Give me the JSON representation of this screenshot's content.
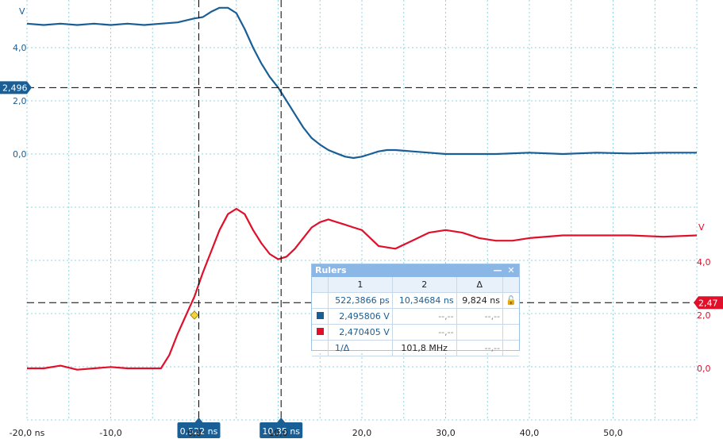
{
  "chart_data": {
    "type": "line",
    "x_unit": "ns",
    "x_ticks": [
      "-20,0 ns",
      "-10,0",
      "0,0",
      "10,0",
      "20,0",
      "30,0",
      "40,0",
      "50,0"
    ],
    "x_tick_values": [
      -20,
      -10,
      0,
      10,
      20,
      30,
      40,
      50
    ],
    "xlim": [
      -20,
      60
    ],
    "series": [
      {
        "color": "#1a5e96",
        "axis_unit": "V",
        "ticks": [
          "4,0",
          "2,0",
          "0,0"
        ],
        "tick_values": [
          4,
          2,
          0
        ],
        "ylim": [
          -2,
          6
        ],
        "x": [
          -20,
          -18,
          -16,
          -14,
          -12,
          -10,
          -8,
          -6,
          -4,
          -2,
          0,
          1,
          2,
          3,
          4,
          5,
          6,
          7,
          8,
          9,
          10,
          11,
          12,
          13,
          14,
          15,
          16,
          17,
          18,
          19,
          20,
          21,
          22,
          23,
          24,
          26,
          28,
          30,
          32,
          34,
          36,
          40,
          44,
          48,
          52,
          56,
          60
        ],
        "y": [
          4.9,
          4.85,
          4.9,
          4.85,
          4.9,
          4.85,
          4.9,
          4.85,
          4.9,
          4.95,
          5.1,
          5.15,
          5.35,
          5.5,
          5.5,
          5.3,
          4.7,
          4.0,
          3.4,
          2.9,
          2.5,
          2.0,
          1.5,
          1.0,
          0.6,
          0.35,
          0.15,
          0.02,
          -0.1,
          -0.15,
          -0.1,
          0.0,
          0.1,
          0.15,
          0.15,
          0.1,
          0.05,
          0.0,
          0.0,
          0.0,
          0.0,
          0.05,
          0.0,
          0.05,
          0.02,
          0.05,
          0.05
        ]
      },
      {
        "color": "#e0102a",
        "axis_unit": "V",
        "ticks": [
          "4,0",
          "2,0",
          "0,0"
        ],
        "tick_values": [
          4,
          2,
          0
        ],
        "ylim": [
          -2,
          6
        ],
        "x": [
          -20,
          -18,
          -16,
          -14,
          -12,
          -10,
          -8,
          -6,
          -4,
          -3,
          -2,
          -1,
          0,
          1,
          2,
          3,
          4,
          5,
          6,
          7,
          8,
          9,
          10,
          11,
          12,
          13,
          14,
          15,
          16,
          17,
          18,
          19,
          20,
          22,
          24,
          26,
          28,
          30,
          32,
          34,
          36,
          38,
          40,
          44,
          48,
          52,
          56,
          60
        ],
        "y": [
          0.0,
          0.0,
          0.1,
          -0.05,
          0.0,
          0.05,
          0.0,
          0.0,
          0.0,
          0.5,
          1.3,
          2.0,
          2.7,
          3.6,
          4.4,
          5.2,
          5.8,
          6.0,
          5.8,
          5.2,
          4.7,
          4.3,
          4.1,
          4.2,
          4.5,
          4.9,
          5.3,
          5.5,
          5.6,
          5.5,
          5.4,
          5.3,
          5.2,
          4.6,
          4.5,
          4.8,
          5.1,
          5.2,
          5.1,
          4.9,
          4.8,
          4.8,
          4.9,
          5.0,
          5.0,
          5.0,
          4.95,
          5.0
        ]
      }
    ],
    "cursors": [
      {
        "label": "0,522 ns",
        "x": 0.522
      },
      {
        "label": "10,35 ns",
        "x": 10.35
      }
    ],
    "level_markers": [
      {
        "label": "2,496",
        "series": 0,
        "value": 2.496
      },
      {
        "label": "2,47",
        "series": 1,
        "value": 2.47
      }
    ],
    "trigger_marker": {
      "x": 0.0,
      "y": 2.0
    }
  },
  "rulers": {
    "title": "Rulers",
    "minimize_glyph": "—",
    "close_glyph": "✕",
    "lock_glyph": "🔓",
    "col1": "1",
    "col2": "2",
    "col_delta": "Δ",
    "row_time": {
      "c1": "522,3866 ps",
      "c2": "10,34684 ns",
      "delta": "9,824 ns"
    },
    "row_blue": {
      "c1": "2,495806 V",
      "c2": "--,--",
      "delta": "--,--"
    },
    "row_red": {
      "c1": "2,470405 V",
      "c2": "--,--",
      "delta": ""
    },
    "row_freq": {
      "label": "1/Δ",
      "c2": "101,8 MHz",
      "delta": "--,--"
    }
  },
  "colors": {
    "blue": "#1a5e96",
    "red": "#e0102a",
    "grid": "#8fd3e0"
  }
}
